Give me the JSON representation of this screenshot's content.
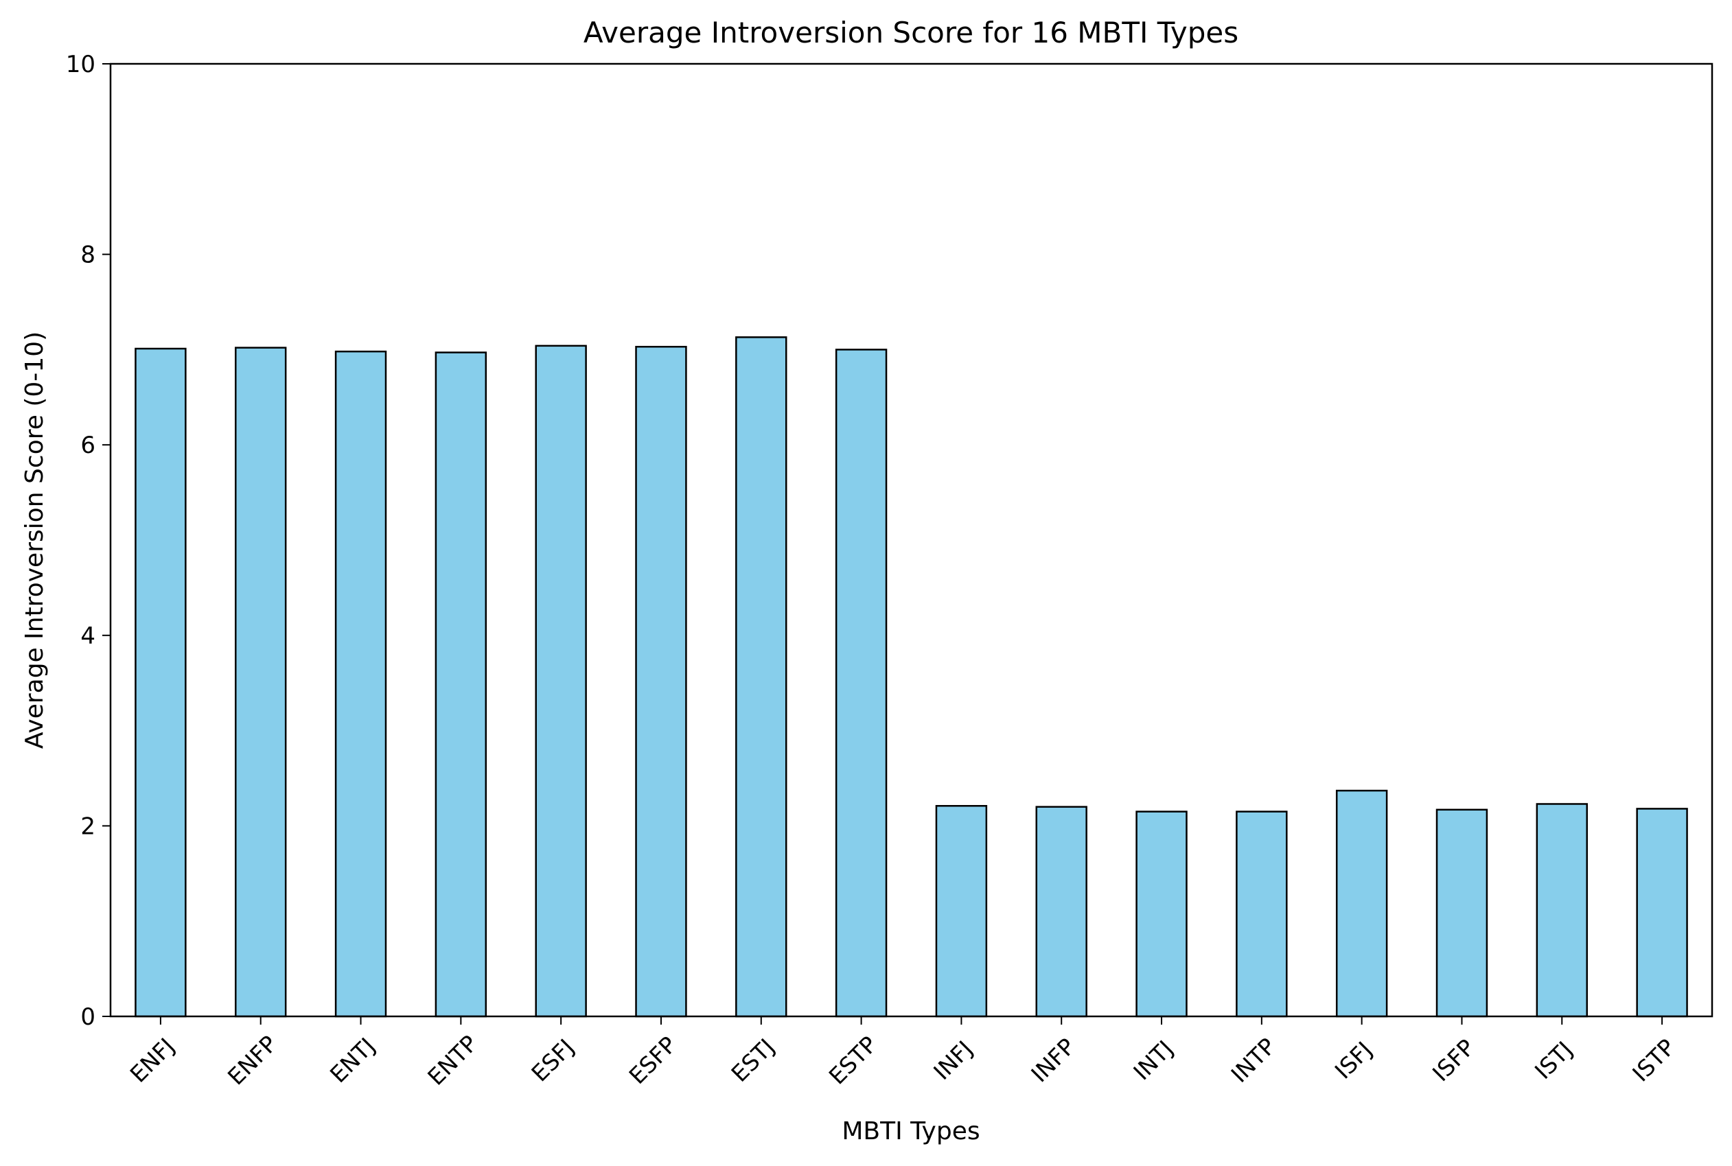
{
  "chart_data": {
    "type": "bar",
    "title": "Average Introversion Score for 16 MBTI Types",
    "xlabel": "MBTI Types",
    "ylabel": "Average Introversion Score (0-10)",
    "ylim": [
      0,
      10
    ],
    "yticks": [
      0,
      2,
      4,
      6,
      8,
      10
    ],
    "categories": [
      "ENFJ",
      "ENFP",
      "ENTJ",
      "ENTP",
      "ESFJ",
      "ESFP",
      "ESTJ",
      "ESTP",
      "INFJ",
      "INFP",
      "INTJ",
      "INTP",
      "ISFJ",
      "ISFP",
      "ISTJ",
      "ISTP"
    ],
    "values": [
      7.01,
      7.02,
      6.98,
      6.97,
      7.04,
      7.03,
      7.13,
      7.0,
      2.21,
      2.2,
      2.15,
      2.15,
      2.37,
      2.17,
      2.23,
      2.18
    ],
    "bar_color": "#87CEEB",
    "edge_color": "#000000",
    "grid": false
  }
}
